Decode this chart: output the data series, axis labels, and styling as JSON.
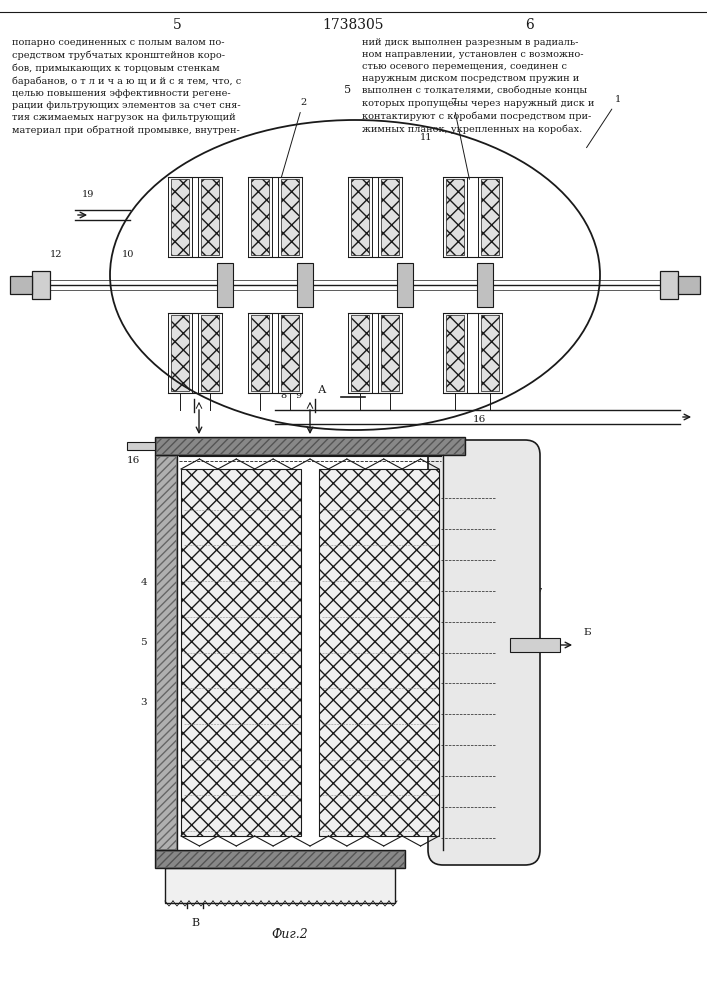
{
  "page_number_left": "5",
  "page_number_center": "1738305",
  "page_number_right": "6",
  "bg_color": "#ffffff",
  "line_color": "#1a1a1a",
  "gray_fill": "#c8c8c8",
  "light_fill": "#e8e8e8",
  "white_fill": "#ffffff"
}
